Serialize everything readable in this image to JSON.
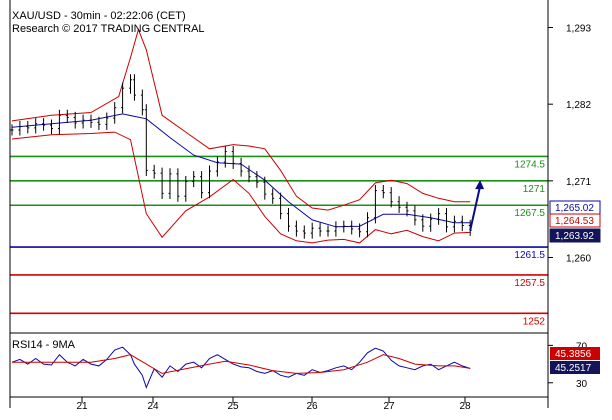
{
  "header": {
    "title": "XAU/USD - 30min - 02:22:06 (CET)",
    "subtitle": "Research © 2017 TRADING CENTRAL"
  },
  "chart_data": [
    {
      "type": "line",
      "subtype": "bar-ohlc",
      "instrument": "XAU/USD",
      "timeframe": "30min",
      "y_ticks": [
        1293,
        1282,
        1271,
        1260
      ],
      "y_tick_labels": [
        "1,293",
        "1,282",
        "1,271",
        "1,260"
      ],
      "ylim": [
        1249.6,
        1295.8
      ],
      "x_ticks": [
        "21",
        "24",
        "25",
        "26",
        "27",
        "28"
      ],
      "grid": false,
      "overlays": [
        "moving average (blue)",
        "Bollinger bands (red)"
      ],
      "price_series": [
        [
          0,
          1278.3
        ],
        [
          2,
          1278.8
        ],
        [
          4,
          1278.6
        ],
        [
          6,
          1279.2
        ],
        [
          8,
          1279.0
        ],
        [
          10,
          1278.5
        ],
        [
          12,
          1280.4
        ],
        [
          14,
          1280.1
        ],
        [
          16,
          1279.3
        ],
        [
          18,
          1279.7
        ],
        [
          20,
          1279.4
        ],
        [
          22,
          1279.1
        ],
        [
          24,
          1280.0
        ],
        [
          26,
          1281.5
        ],
        [
          28,
          1284.3
        ],
        [
          30,
          1285.5
        ],
        [
          31,
          1283.3
        ],
        [
          33,
          1281.2
        ],
        [
          34,
          1272.5
        ],
        [
          36,
          1272.1
        ],
        [
          38,
          1269.2
        ],
        [
          40,
          1272.0
        ],
        [
          42,
          1268.8
        ],
        [
          44,
          1270.9
        ],
        [
          46,
          1271.6
        ],
        [
          48,
          1269.3
        ],
        [
          50,
          1272.4
        ],
        [
          52,
          1273.7
        ],
        [
          54,
          1275.2
        ],
        [
          56,
          1273.5
        ],
        [
          58,
          1272.4
        ],
        [
          60,
          1271.6
        ],
        [
          62,
          1270.8
        ],
        [
          64,
          1269.1
        ],
        [
          66,
          1268.5
        ],
        [
          68,
          1266.3
        ],
        [
          70,
          1264.5
        ],
        [
          72,
          1263.8
        ],
        [
          74,
          1263.5
        ],
        [
          76,
          1264.2
        ],
        [
          78,
          1263.8
        ],
        [
          80,
          1263.8
        ],
        [
          82,
          1264.4
        ],
        [
          84,
          1264.5
        ],
        [
          86,
          1264.1
        ],
        [
          88,
          1263.7
        ],
        [
          90,
          1265.7
        ],
        [
          92,
          1269.6
        ],
        [
          94,
          1269.3
        ],
        [
          96,
          1268.0
        ],
        [
          98,
          1267.2
        ],
        [
          100,
          1266.7
        ],
        [
          102,
          1265.4
        ],
        [
          104,
          1264.5
        ],
        [
          106,
          1265.5
        ],
        [
          108,
          1266.3
        ],
        [
          110,
          1264.4
        ],
        [
          112,
          1265.2
        ],
        [
          114,
          1264.6
        ],
        [
          116,
          1263.9
        ]
      ],
      "ma_series": [
        [
          0,
          1278.7
        ],
        [
          10,
          1279.2
        ],
        [
          20,
          1279.7
        ],
        [
          28,
          1280.6
        ],
        [
          34,
          1279.9
        ],
        [
          40,
          1277.2
        ],
        [
          46,
          1274.7
        ],
        [
          52,
          1273.6
        ],
        [
          58,
          1273.4
        ],
        [
          64,
          1271.1
        ],
        [
          70,
          1268.0
        ],
        [
          76,
          1265.4
        ],
        [
          82,
          1264.4
        ],
        [
          88,
          1264.5
        ],
        [
          94,
          1266.2
        ],
        [
          100,
          1266.2
        ],
        [
          106,
          1265.7
        ],
        [
          112,
          1265.0
        ],
        [
          116,
          1265.0
        ]
      ],
      "bollinger_upper": [
        [
          0,
          1279.6
        ],
        [
          10,
          1280.4
        ],
        [
          20,
          1280.8
        ],
        [
          27,
          1283.1
        ],
        [
          30,
          1288.7
        ],
        [
          32,
          1292.7
        ],
        [
          34,
          1289.8
        ],
        [
          38,
          1280.4
        ],
        [
          44,
          1278.0
        ],
        [
          50,
          1275.6
        ],
        [
          56,
          1276.2
        ],
        [
          60,
          1276.0
        ],
        [
          64,
          1275.6
        ],
        [
          68,
          1272.5
        ],
        [
          72,
          1268.8
        ],
        [
          76,
          1267.1
        ],
        [
          80,
          1266.8
        ],
        [
          84,
          1267.5
        ],
        [
          88,
          1268.3
        ],
        [
          92,
          1270.7
        ],
        [
          96,
          1271.1
        ],
        [
          100,
          1270.6
        ],
        [
          104,
          1269.2
        ],
        [
          108,
          1268.5
        ],
        [
          112,
          1268.0
        ],
        [
          116,
          1268.0
        ]
      ],
      "bollinger_lower": [
        [
          0,
          1277.0
        ],
        [
          10,
          1277.6
        ],
        [
          20,
          1277.8
        ],
        [
          26,
          1278.0
        ],
        [
          30,
          1276.9
        ],
        [
          34,
          1266.3
        ],
        [
          38,
          1262.9
        ],
        [
          44,
          1266.7
        ],
        [
          50,
          1268.7
        ],
        [
          56,
          1271.2
        ],
        [
          60,
          1269.2
        ],
        [
          64,
          1265.9
        ],
        [
          68,
          1263.4
        ],
        [
          72,
          1262.4
        ],
        [
          76,
          1262.1
        ],
        [
          80,
          1262.5
        ],
        [
          84,
          1262.6
        ],
        [
          88,
          1262.1
        ],
        [
          92,
          1264.0
        ],
        [
          96,
          1263.4
        ],
        [
          100,
          1263.9
        ],
        [
          104,
          1263.0
        ],
        [
          108,
          1262.4
        ],
        [
          112,
          1263.5
        ],
        [
          116,
          1263.6
        ]
      ],
      "forecast_arrow": [
        [
          116,
          1263.9
        ],
        [
          118,
          1271.1
        ]
      ],
      "levels": [
        {
          "label": "1274.5",
          "value": 1274.5,
          "color": "#1a8f1a"
        },
        {
          "label": "1271",
          "value": 1271,
          "color": "#1a8f1a"
        },
        {
          "label": "1267.5",
          "value": 1267.5,
          "color": "#1a8f1a"
        },
        {
          "label": "1261.5",
          "value": 1261.5,
          "color": "#0a0aa5"
        },
        {
          "label": "1257.5",
          "value": 1257.5,
          "color": "#d40000"
        },
        {
          "label": "1252",
          "value": 1252,
          "color": "#d40000"
        }
      ],
      "price_tags": [
        {
          "label": "1,265.02",
          "value": 1265.02,
          "bg": "#ffffff",
          "fg": "#0a0aa5",
          "border": "#0a0aa5"
        },
        {
          "label": "1,264.53",
          "value": 1264.53,
          "bg": "#ffffff",
          "fg": "#cc0000",
          "border": "#cc0000"
        },
        {
          "label": "1,263.92",
          "value": 1263.92,
          "bg": "#14145a",
          "fg": "#ffffff",
          "border": "#14145a"
        }
      ]
    },
    {
      "type": "line",
      "title": "RSI14 - 9MA",
      "y_ticks": [
        70,
        30
      ],
      "ylim": [
        18,
        80
      ],
      "series": [
        {
          "name": "RSI14",
          "color": "#0a0aa5",
          "values": [
            [
              0,
              52
            ],
            [
              2,
              55
            ],
            [
              4,
              50
            ],
            [
              6,
              56
            ],
            [
              8,
              50
            ],
            [
              10,
              49
            ],
            [
              12,
              60
            ],
            [
              14,
              52
            ],
            [
              16,
              48
            ],
            [
              18,
              55
            ],
            [
              20,
              50
            ],
            [
              22,
              48
            ],
            [
              24,
              55
            ],
            [
              26,
              65
            ],
            [
              28,
              68
            ],
            [
              30,
              60
            ],
            [
              31,
              50
            ],
            [
              33,
              38
            ],
            [
              34,
              25
            ],
            [
              36,
              45
            ],
            [
              38,
              36
            ],
            [
              40,
              48
            ],
            [
              42,
              42
            ],
            [
              44,
              50
            ],
            [
              46,
              52
            ],
            [
              48,
              46
            ],
            [
              50,
              56
            ],
            [
              52,
              60
            ],
            [
              54,
              55
            ],
            [
              56,
              50
            ],
            [
              58,
              47
            ],
            [
              60,
              46
            ],
            [
              62,
              42
            ],
            [
              64,
              40
            ],
            [
              66,
              43
            ],
            [
              68,
              38
            ],
            [
              70,
              36
            ],
            [
              72,
              40
            ],
            [
              74,
              38
            ],
            [
              76,
              44
            ],
            [
              78,
              41
            ],
            [
              80,
              43
            ],
            [
              82,
              46
            ],
            [
              84,
              48
            ],
            [
              86,
              44
            ],
            [
              88,
              52
            ],
            [
              90,
              62
            ],
            [
              92,
              67
            ],
            [
              94,
              64
            ],
            [
              96,
              54
            ],
            [
              98,
              48
            ],
            [
              100,
              46
            ],
            [
              102,
              44
            ],
            [
              104,
              48
            ],
            [
              106,
              50
            ],
            [
              108,
              44
            ],
            [
              110,
              48
            ],
            [
              112,
              52
            ],
            [
              114,
              48
            ],
            [
              116,
              45.25
            ]
          ]
        },
        {
          "name": "9MA",
          "color": "#cc0000",
          "values": [
            [
              0,
              52
            ],
            [
              10,
              52
            ],
            [
              20,
              52
            ],
            [
              26,
              56
            ],
            [
              30,
              60
            ],
            [
              34,
              50
            ],
            [
              38,
              40
            ],
            [
              44,
              45
            ],
            [
              50,
              50
            ],
            [
              54,
              53
            ],
            [
              60,
              49
            ],
            [
              66,
              43
            ],
            [
              72,
              40
            ],
            [
              78,
              41
            ],
            [
              84,
              44
            ],
            [
              90,
              52
            ],
            [
              94,
              60
            ],
            [
              98,
              56
            ],
            [
              102,
              50
            ],
            [
              108,
              48
            ],
            [
              112,
              48
            ],
            [
              116,
              45.39
            ]
          ]
        }
      ],
      "tags": [
        {
          "label": "45.3856",
          "value": 45.3856,
          "bg": "#cc0000",
          "fg": "#ffffff"
        },
        {
          "label": "45.2517",
          "value": 45.2517,
          "bg": "#14145a",
          "fg": "#ffffff"
        }
      ]
    }
  ]
}
